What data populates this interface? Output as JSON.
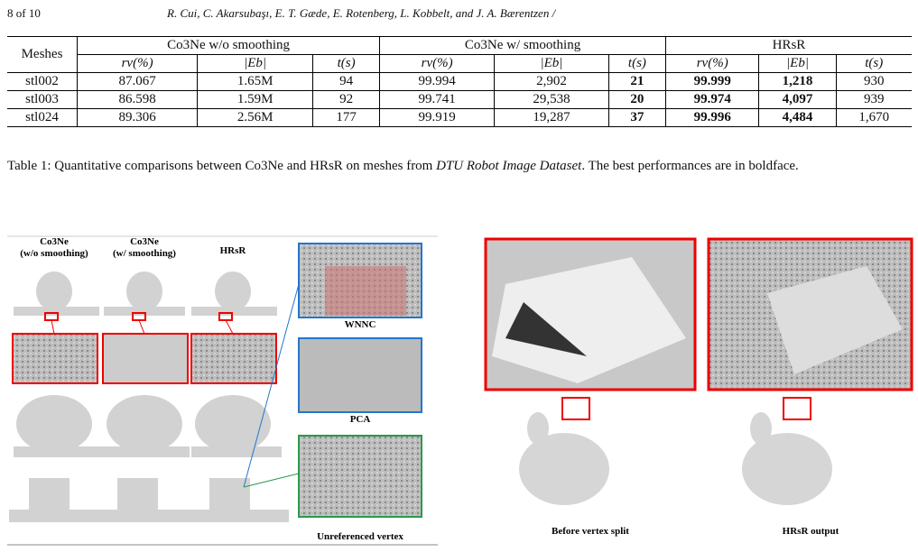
{
  "header": {
    "page": "8 of 10",
    "authors": "R. Cui, C. Akarsubaşı, E. T. Gæde, E. Rotenberg, L. Kobbelt, and J. A. Bærentzen /"
  },
  "table": {
    "corner": "Meshes",
    "groups": [
      "Co3Ne w/o smoothing",
      "Co3Ne w/ smoothing",
      "HRsR"
    ],
    "subheaders": [
      "rv(%)",
      "|Eb|",
      "t(s)",
      "rv(%)",
      "|Eb|",
      "t(s)",
      "rv(%)",
      "|Eb|",
      "t(s)"
    ],
    "rows": [
      [
        "stl002",
        "87.067",
        "1.65M",
        "94",
        "99.994",
        "2,902",
        "21",
        "99.999",
        "1,218",
        "930"
      ],
      [
        "stl003",
        "86.598",
        "1.59M",
        "92",
        "99.741",
        "29,538",
        "20",
        "99.974",
        "4,097",
        "939"
      ],
      [
        "stl024",
        "89.306",
        "2.56M",
        "177",
        "99.919",
        "19,287",
        "37",
        "99.996",
        "4,484",
        "1,670"
      ]
    ]
  },
  "caption": {
    "lead": "Table 1: Quantitative comparisons between Co3Ne and HRsR on meshes from ",
    "dataset": "DTU Robot Image Dataset",
    "tail": ". The best performances are in boldface."
  },
  "figure_left": {
    "columns": [
      [
        "Co3Ne",
        "(w/o smoothing)"
      ],
      [
        "Co3Ne",
        "(w/ smoothing)"
      ],
      [
        "HRsR"
      ]
    ],
    "insets": [
      "WNNC",
      "PCA",
      "Unreferenced vertex"
    ]
  },
  "figure_right": {
    "labels": [
      "Before vertex split",
      "HRsR output"
    ]
  }
}
